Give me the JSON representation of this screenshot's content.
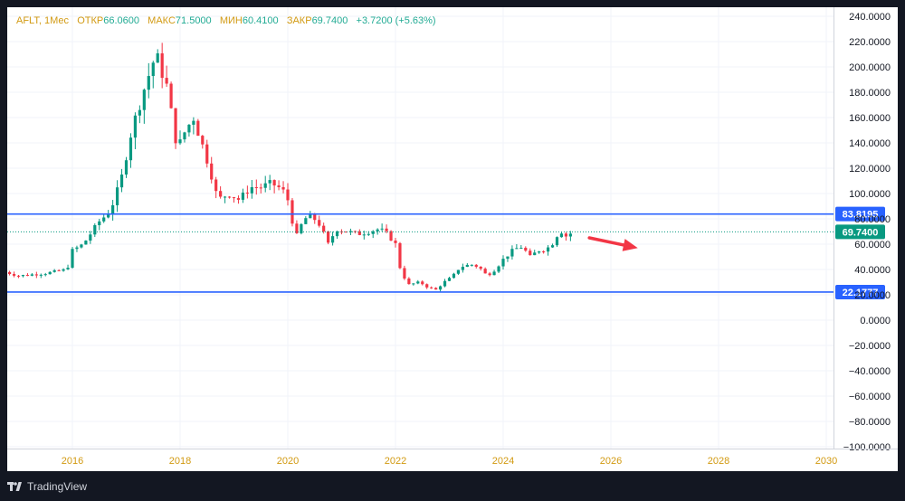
{
  "legend": {
    "ticker": "AFLT, 1Мес",
    "open_label": "ОТКР",
    "open_value": "66.0600",
    "high_label": "МАКС",
    "high_value": "71.5000",
    "low_label": "МИН",
    "low_value": "60.4100",
    "close_label": "ЗАКР",
    "close_value": "69.7400",
    "change": "+3.7200 (+5.63%)"
  },
  "footer": {
    "brand": "TradingView"
  },
  "colors": {
    "up": "#089981",
    "down": "#f23645",
    "level_line": "#2962ff",
    "arrow": "#f23645",
    "price_badge": "#089981",
    "axis_text": "#d29a12"
  },
  "chart_data": {
    "type": "candlestick",
    "timeframe": "1 month",
    "y_axis": {
      "range": [
        -100,
        240
      ],
      "ticks": [
        "240.0000",
        "220.0000",
        "200.0000",
        "180.0000",
        "160.0000",
        "140.0000",
        "120.0000",
        "100.0000",
        "80.0000",
        "60.0000",
        "40.0000",
        "20.0000",
        "0.0000",
        "−20.0000",
        "−40.0000",
        "−60.0000",
        "−80.0000",
        "−100.0000"
      ],
      "tick_values": [
        240,
        220,
        200,
        180,
        160,
        140,
        120,
        100,
        80,
        60,
        40,
        20,
        0,
        -20,
        -40,
        -60,
        -80,
        -100
      ]
    },
    "x_axis": {
      "ticks": [
        "2016",
        "2018",
        "2020",
        "2022",
        "2024",
        "2026",
        "2028",
        "2030"
      ],
      "tick_years": [
        2016,
        2018,
        2020,
        2022,
        2024,
        2026,
        2028,
        2030
      ]
    },
    "grid": true,
    "anchors": [
      [
        2014.75,
        38
      ],
      [
        2015.0,
        35
      ],
      [
        2015.5,
        37
      ],
      [
        2015.9,
        40
      ],
      [
        2016.0,
        55
      ],
      [
        2016.2,
        60
      ],
      [
        2016.5,
        78
      ],
      [
        2016.7,
        86
      ],
      [
        2016.9,
        110
      ],
      [
        2017.1,
        150
      ],
      [
        2017.35,
        185
      ],
      [
        2017.55,
        210
      ],
      [
        2017.75,
        185
      ],
      [
        2017.85,
        160
      ],
      [
        2017.95,
        135
      ],
      [
        2018.1,
        150
      ],
      [
        2018.25,
        160
      ],
      [
        2018.4,
        140
      ],
      [
        2018.55,
        120
      ],
      [
        2018.7,
        95
      ],
      [
        2018.9,
        100
      ],
      [
        2019.1,
        95
      ],
      [
        2019.3,
        105
      ],
      [
        2019.5,
        105
      ],
      [
        2019.7,
        108
      ],
      [
        2019.9,
        103
      ],
      [
        2020.0,
        95
      ],
      [
        2020.15,
        65
      ],
      [
        2020.3,
        80
      ],
      [
        2020.45,
        82
      ],
      [
        2020.6,
        75
      ],
      [
        2020.75,
        60
      ],
      [
        2020.9,
        72
      ],
      [
        2021.1,
        70
      ],
      [
        2021.3,
        68
      ],
      [
        2021.5,
        70
      ],
      [
        2021.7,
        72
      ],
      [
        2021.85,
        68
      ],
      [
        2022.0,
        60
      ],
      [
        2022.1,
        38
      ],
      [
        2022.25,
        28
      ],
      [
        2022.45,
        30
      ],
      [
        2022.6,
        26
      ],
      [
        2022.75,
        24
      ],
      [
        2022.9,
        30
      ],
      [
        2023.05,
        34
      ],
      [
        2023.2,
        42
      ],
      [
        2023.4,
        44
      ],
      [
        2023.55,
        42
      ],
      [
        2023.7,
        35
      ],
      [
        2023.85,
        40
      ],
      [
        2024.0,
        48
      ],
      [
        2024.2,
        56
      ],
      [
        2024.35,
        58
      ],
      [
        2024.5,
        50
      ],
      [
        2024.65,
        55
      ],
      [
        2024.8,
        56
      ],
      [
        2024.95,
        62
      ],
      [
        2025.05,
        72
      ],
      [
        2025.15,
        66
      ],
      [
        2025.3,
        69.74
      ]
    ],
    "levels": [
      {
        "price": 83.8195,
        "label": "83.8195",
        "color": "#2962ff",
        "style": "solid"
      },
      {
        "price": 22.1777,
        "label": "22.1777",
        "color": "#2962ff",
        "style": "solid"
      }
    ],
    "last_price": {
      "price": 69.74,
      "label": "69.7400",
      "color": "#089981",
      "style": "dotted"
    },
    "annotation": {
      "type": "arrow",
      "direction": "right",
      "color": "#f23645",
      "from": [
        2025.6,
        65
      ],
      "to": [
        2026.5,
        57
      ]
    }
  }
}
